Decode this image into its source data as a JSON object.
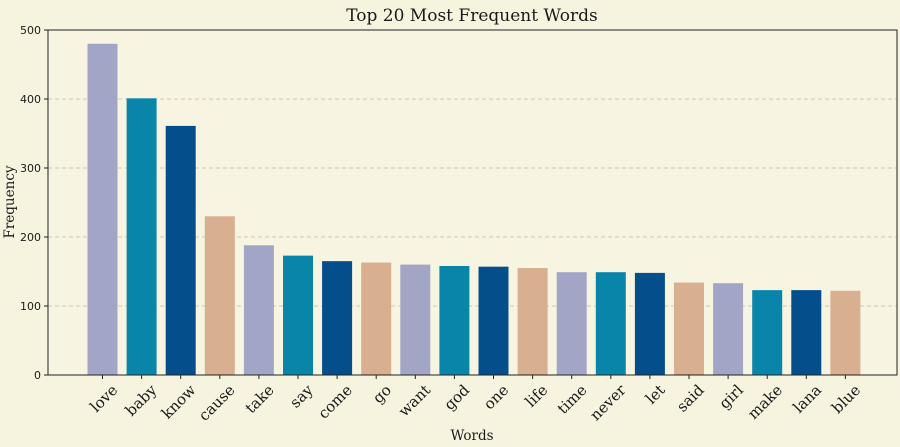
{
  "chart_data": {
    "type": "bar",
    "title": "Top 20 Most Frequent Words",
    "xlabel": "Words",
    "ylabel": "Frequency",
    "ylim": [
      0,
      500
    ],
    "yticks": [
      0,
      100,
      200,
      300,
      400,
      500
    ],
    "grid": "y-dashed",
    "categories": [
      "love",
      "baby",
      "know",
      "cause",
      "take",
      "say",
      "come",
      "go",
      "want",
      "god",
      "one",
      "life",
      "time",
      "never",
      "let",
      "said",
      "girl",
      "make",
      "lana",
      "blue"
    ],
    "values": [
      480,
      401,
      361,
      230,
      188,
      173,
      165,
      163,
      160,
      158,
      157,
      155,
      149,
      149,
      148,
      134,
      133,
      123,
      123,
      122
    ],
    "palette": [
      "#a1a6c6",
      "#0a85aa",
      "#044e8c",
      "#d8af8f"
    ],
    "background": "#f6f3df",
    "plot_background": "#f7f5e1"
  }
}
